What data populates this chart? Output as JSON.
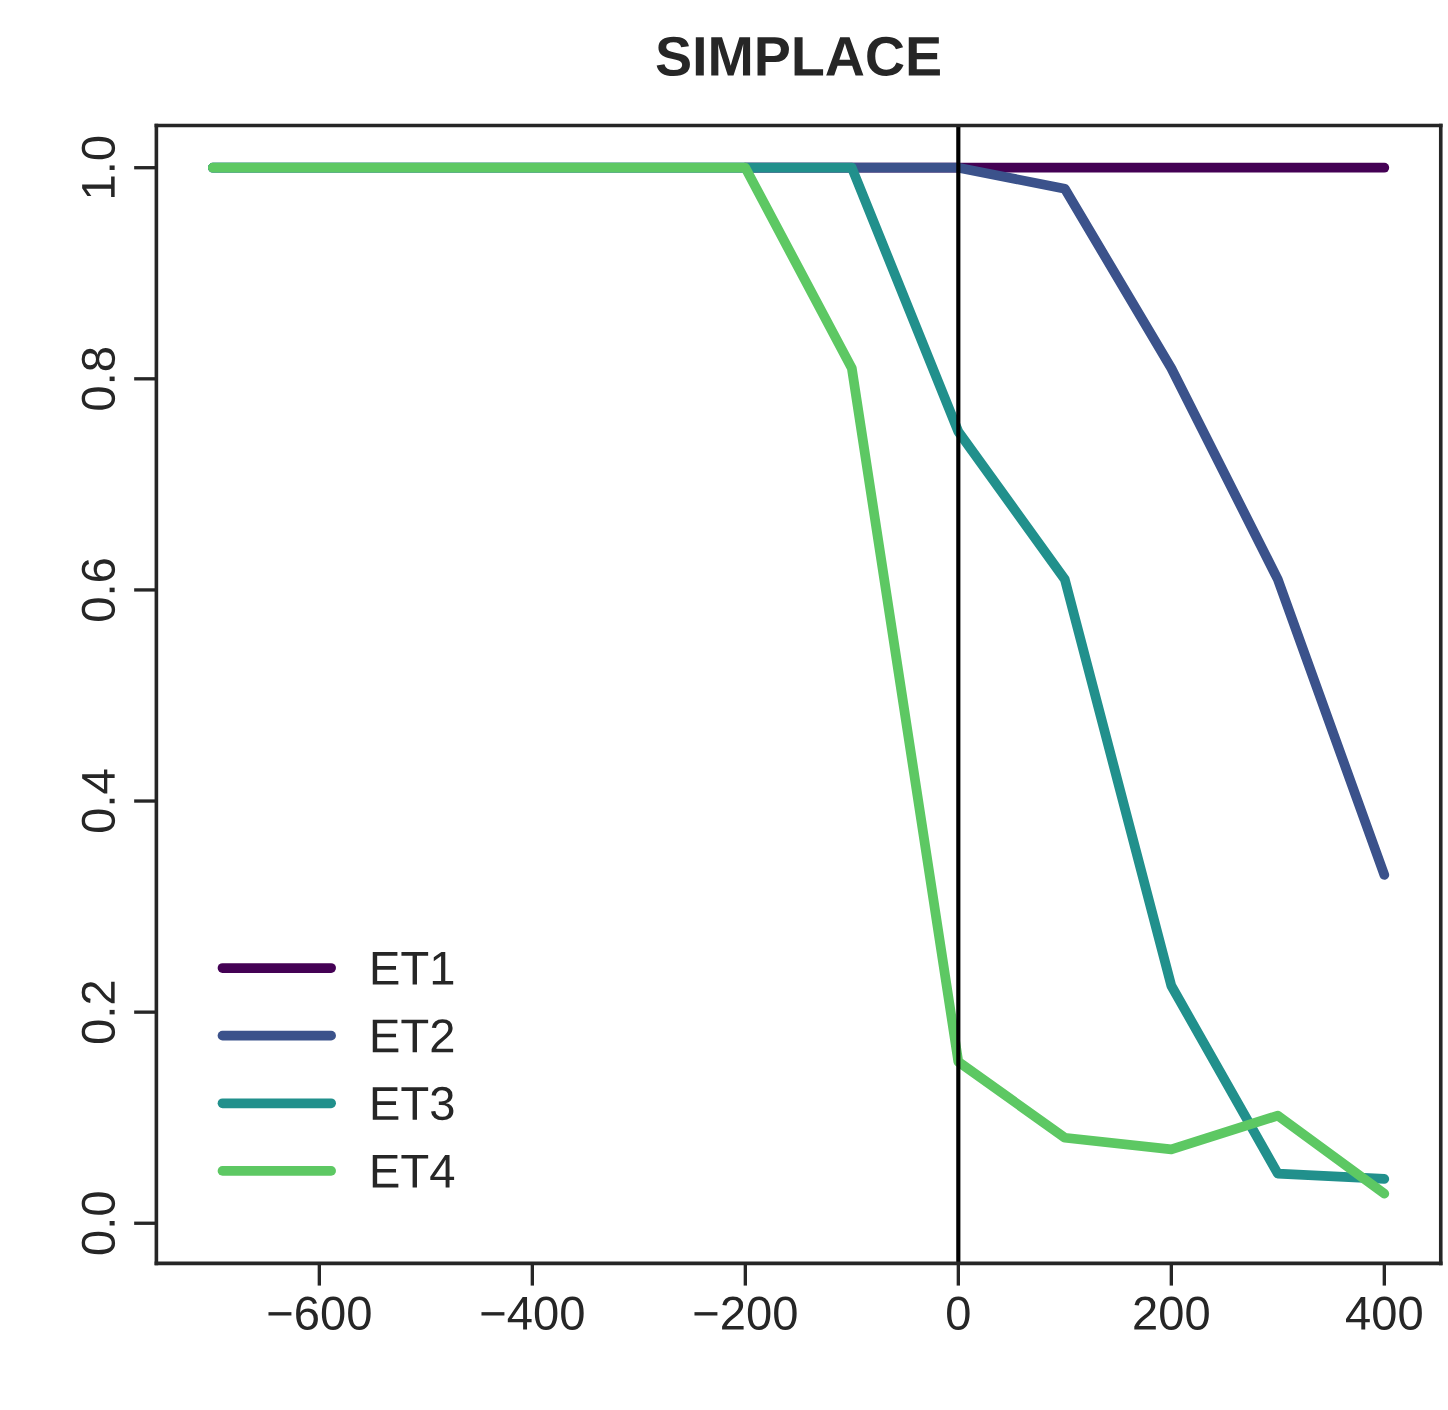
{
  "chart_data": {
    "type": "line",
    "title": "SIMPLACE",
    "x": [
      -700,
      -600,
      -500,
      -400,
      -300,
      -200,
      -100,
      0,
      100,
      200,
      300,
      400
    ],
    "series": [
      {
        "name": "ET1",
        "color": "#440154",
        "values": [
          null,
          null,
          null,
          null,
          null,
          1,
          1,
          1,
          1,
          1,
          1,
          1
        ]
      },
      {
        "name": "ET2",
        "color": "#3b528b",
        "values": [
          1,
          1,
          1,
          1,
          1,
          1,
          1,
          1,
          0.98,
          0.81,
          0.61,
          0.33
        ]
      },
      {
        "name": "ET3",
        "color": "#21908c",
        "values": [
          1,
          1,
          1,
          1,
          1,
          1,
          1,
          0.75,
          0.61,
          0.225,
          0.047,
          0.042
        ]
      },
      {
        "name": "ET4",
        "color": "#5dc863",
        "values": [
          1,
          1,
          1,
          1,
          1,
          1,
          0.81,
          0.153,
          0.081,
          0.07,
          0.102,
          0.028
        ]
      }
    ],
    "xlim": [
      -753,
      453
    ],
    "ylim": [
      -0.038,
      1.04
    ],
    "xticks": [
      -600,
      -400,
      -200,
      0,
      200,
      400
    ],
    "yticks": [
      {
        "value": 0,
        "label": "0.0"
      },
      {
        "value": 0.2,
        "label": "0.2"
      },
      {
        "value": 0.4,
        "label": "0.4"
      },
      {
        "value": 0.6,
        "label": "0.6"
      },
      {
        "value": 0.8,
        "label": "0.8"
      },
      {
        "value": 1,
        "label": "1.0"
      }
    ],
    "ref_lines": [
      {
        "axis": "x",
        "value": 0,
        "color": "#000000"
      }
    ],
    "legend": "bottom left",
    "grid": false,
    "line_style": "solid"
  }
}
